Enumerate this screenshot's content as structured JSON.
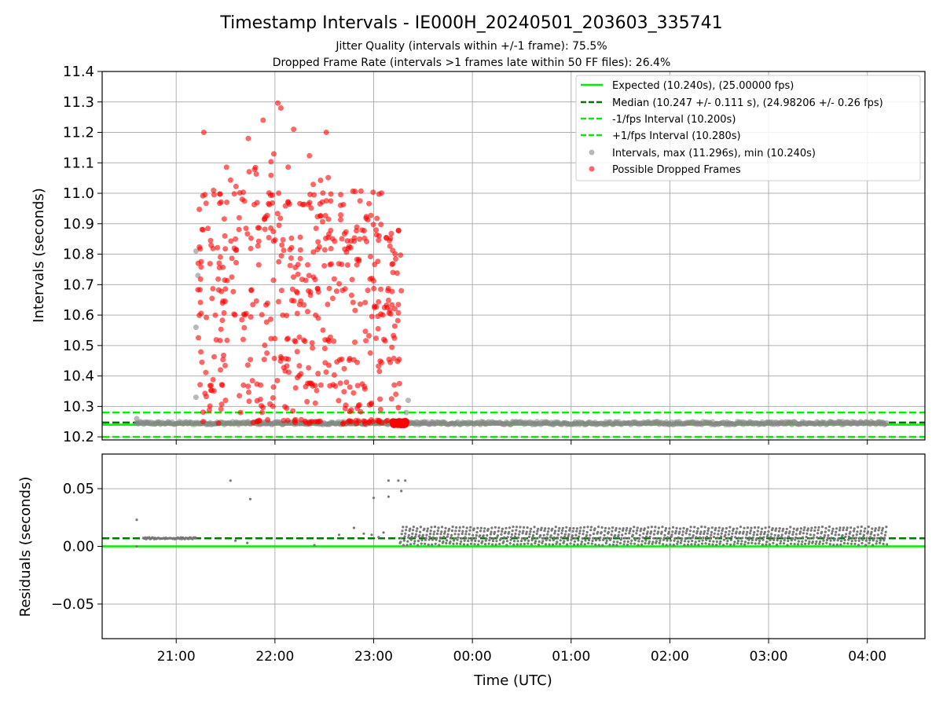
{
  "figure": {
    "title": "Timestamp Intervals - IE000H_20240501_203603_335741",
    "subtitle_1": "Jitter Quality (intervals within +/-1 frame): 75.5%",
    "subtitle_2": "Dropped Frame Rate (intervals >1 frames late within 50 FF files): 26.4%"
  },
  "chart_data": [
    {
      "type": "scatter",
      "panel": "top",
      "xlabel": "",
      "ylabel": "Intervals (seconds)",
      "xlim": [
        "20:15",
        "04:35"
      ],
      "ylim": [
        10.19,
        11.4
      ],
      "y_ticks": [
        "10.2",
        "10.3",
        "10.4",
        "10.5",
        "10.6",
        "10.7",
        "10.8",
        "10.9",
        "11.0",
        "11.1",
        "11.2",
        "11.3",
        "11.4"
      ],
      "grid": true,
      "legend_position": "top-right",
      "lines": [
        {
          "name": "Expected (10.240s), (25.00000 fps)",
          "y": 10.24,
          "style": "solid",
          "color": "#00ee00"
        },
        {
          "name": "Median (10.247 +/- 0.111 s), (24.98206 +/- 0.26 fps)",
          "y": 10.247,
          "style": "dashed",
          "color": "#007700"
        },
        {
          "name": "-1/fps Interval (10.200s)",
          "y": 10.2,
          "style": "dashed",
          "color": "#00ee00"
        },
        {
          "name": "+1/fps Interval (10.280s)",
          "y": 10.28,
          "style": "dashed",
          "color": "#00ee00"
        }
      ],
      "series": [
        {
          "name": "Intervals, max (11.296s), min (10.240s)",
          "color": "#888888",
          "x_range": [
            "20:36",
            "04:12"
          ],
          "typical_y": 10.245,
          "outliers": [
            [
              21.2,
              10.81
            ],
            [
              21.22,
              10.73
            ],
            [
              21.2,
              10.56
            ],
            [
              21.2,
              10.33
            ],
            [
              23.35,
              10.32
            ],
            [
              23.33,
              10.28
            ],
            [
              20.6,
              10.26
            ]
          ]
        },
        {
          "name": "Possible Dropped Frames",
          "color": "#ff0000",
          "x_range": [
            "21:13",
            "23:17"
          ],
          "y_range": [
            10.24,
            11.296
          ],
          "cluster_at_x": "23:15",
          "cluster_y": 10.245
        }
      ]
    },
    {
      "type": "scatter",
      "panel": "bottom",
      "xlabel": "Time (UTC)",
      "ylabel": "Residuals (seconds)",
      "ylim": [
        -0.08,
        0.08
      ],
      "y_ticks": [
        "−0.05",
        "0.00",
        "0.05"
      ],
      "x_ticks": [
        "21:00",
        "22:00",
        "23:00",
        "00:00",
        "01:00",
        "02:00",
        "03:00",
        "04:00"
      ],
      "grid": true,
      "lines": [
        {
          "y": 0.0,
          "style": "solid",
          "color": "#00ee00"
        },
        {
          "y": 0.007,
          "style": "dashed",
          "color": "#007700"
        }
      ],
      "series": [
        {
          "color": "#777777",
          "band_x_range": [
            "23:16",
            "04:12"
          ],
          "band_y_range": [
            0.002,
            0.016
          ],
          "early_segment": {
            "x_range": [
              "20:40",
              "21:12"
            ],
            "y": 0.007
          },
          "outliers": [
            [
              20.6,
              0.023
            ],
            [
              20.6,
              0.0
            ],
            [
              21.55,
              0.057
            ],
            [
              21.75,
              0.041
            ],
            [
              21.6,
              0.005
            ],
            [
              21.72,
              0.003
            ],
            [
              22.4,
              0.001
            ],
            [
              22.65,
              0.01
            ],
            [
              22.8,
              0.016
            ],
            [
              22.9,
              0.011
            ],
            [
              23.0,
              0.042
            ],
            [
              23.15,
              0.043
            ],
            [
              23.15,
              0.057
            ],
            [
              23.25,
              0.057
            ],
            [
              23.28,
              0.048
            ],
            [
              23.32,
              0.057
            ],
            [
              23.1,
              0.012
            ],
            [
              23.05,
              0.008
            ],
            [
              22.98,
              0.01
            ]
          ]
        }
      ]
    }
  ],
  "colors": {
    "red": "#ff0000",
    "gray": "#888888",
    "green": "#00ee00",
    "darkgreen": "#007700",
    "grid": "#b0b0b0"
  }
}
